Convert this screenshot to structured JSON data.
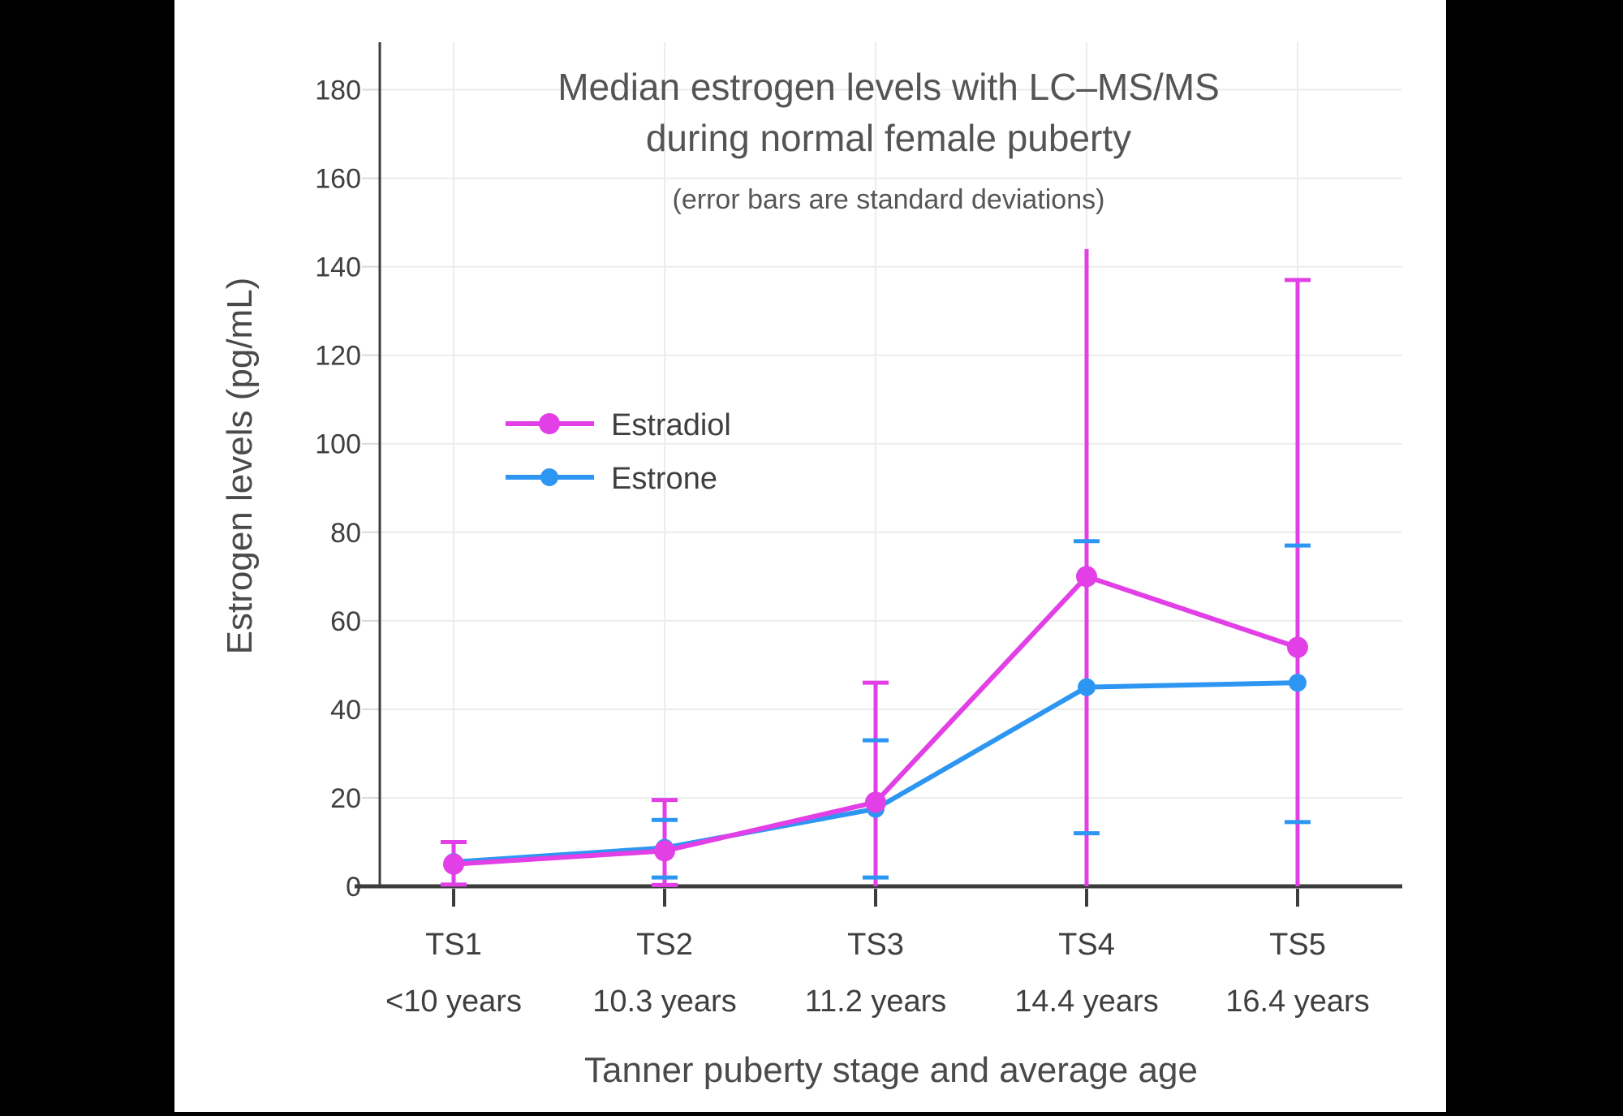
{
  "page": {
    "background": "#000000",
    "panel_background": "#ffffff"
  },
  "chart_data": {
    "type": "line",
    "title": [
      "Median estrogen levels with LC–MS/MS",
      "during normal female puberty"
    ],
    "subtitle": "(error bars are standard deviations)",
    "xlabel": "Tanner puberty stage and average age",
    "ylabel": "Estrogen levels (pg/mL)",
    "categories": [
      "TS1",
      "TS2",
      "TS3",
      "TS4",
      "TS5"
    ],
    "category_ages": [
      "<10 years",
      "10.3 years",
      "11.2 years",
      "14.4 years",
      "16.4 years"
    ],
    "yticks": [
      0,
      20,
      40,
      60,
      80,
      100,
      120,
      140,
      160,
      180
    ],
    "ylim": [
      0,
      190
    ],
    "grid": true,
    "legend_position": "inside-upper-left",
    "error_bars": "standard deviations, clipped at 0",
    "series": [
      {
        "name": "Estradiol",
        "color": "#E23FE6",
        "values": [
          5,
          8,
          19,
          70,
          54
        ],
        "error_top": [
          10,
          19.5,
          46,
          144,
          137
        ],
        "error_bottom": [
          0.4,
          0.3,
          0,
          0,
          0
        ],
        "cap_top": [
          true,
          true,
          true,
          false,
          true
        ],
        "cap_bottom": [
          true,
          true,
          false,
          false,
          false
        ]
      },
      {
        "name": "Estrone",
        "color": "#2D96F2",
        "values": [
          5.5,
          8.7,
          17.5,
          45,
          46
        ],
        "error_top": [
          null,
          15,
          33,
          78,
          77
        ],
        "error_bottom": [
          null,
          2,
          2,
          12,
          14.5
        ],
        "cap_top": [
          false,
          true,
          true,
          true,
          true
        ],
        "cap_bottom": [
          false,
          true,
          true,
          true,
          true
        ]
      }
    ],
    "style": {
      "grid_color": "#ECECEC",
      "axis_color": "#3d3d3d",
      "ytick_color": "#d9d9d9",
      "text_color": "#4a4a4a"
    }
  }
}
